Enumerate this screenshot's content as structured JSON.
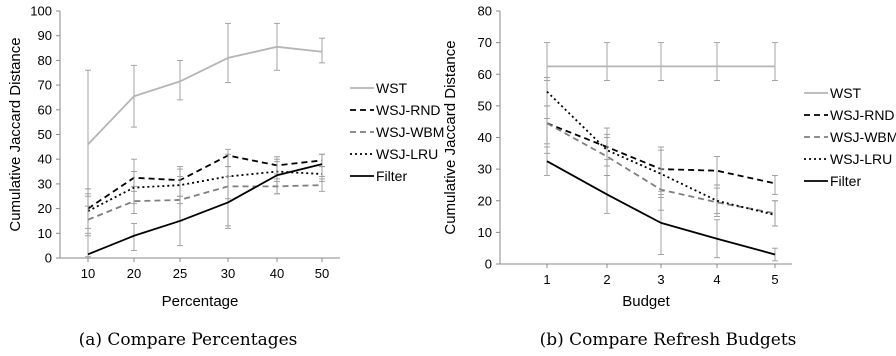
{
  "chart_data": [
    {
      "type": "line",
      "caption": "(a) Compare Percentages",
      "xlabel": "Percentage",
      "ylabel": "Cumulative Jaccard Distance",
      "categories": [
        "10",
        "20",
        "25",
        "30",
        "40",
        "50"
      ],
      "ylim": [
        0,
        100
      ],
      "yticks": [
        "0",
        "10",
        "20",
        "30",
        "40",
        "50",
        "60",
        "70",
        "80",
        "90",
        "100"
      ],
      "grid": false,
      "legend_position": "right",
      "series": [
        {
          "name": "WST",
          "color": "#b5b5b5",
          "dash": "solid",
          "values": [
            46,
            65.5,
            71.5,
            81,
            85.5,
            83.5
          ],
          "err_low": [
            25,
            53,
            64,
            71,
            76,
            79
          ],
          "err_high": [
            76,
            78,
            80,
            95,
            95,
            89
          ]
        },
        {
          "name": "WSJ-RND",
          "color": "#000000",
          "dash": "dashed",
          "values": [
            20,
            32.5,
            31.5,
            41.5,
            37.5,
            39.5
          ],
          "err_low": [
            12,
            27,
            25,
            37,
            34,
            37
          ],
          "err_high": [
            28,
            40,
            37,
            44,
            41,
            42
          ]
        },
        {
          "name": "WSJ-WBM",
          "color": "#7f7f7f",
          "dash": "dashed",
          "values": [
            15.5,
            23,
            23.5,
            29,
            29,
            29.5
          ],
          "err_low": [
            10,
            18,
            15,
            13,
            26,
            27
          ],
          "err_high": [
            21,
            29,
            33,
            37,
            32,
            32
          ]
        },
        {
          "name": "WSJ-LRU",
          "color": "#000000",
          "dash": "dotted",
          "values": [
            19,
            28.5,
            29.5,
            33,
            35,
            34
          ],
          "err_low": [
            9,
            22,
            22,
            24,
            31,
            31
          ],
          "err_high": [
            28,
            35,
            36,
            42,
            39,
            37
          ]
        },
        {
          "name": "Filter",
          "color": "#000000",
          "dash": "solid",
          "values": [
            1.5,
            9,
            15,
            22.5,
            33.5,
            38
          ],
          "err_low": [
            0.5,
            3,
            5,
            12,
            26,
            33
          ],
          "err_high": [
            26,
            14,
            25,
            33,
            40,
            42
          ]
        }
      ]
    },
    {
      "type": "line",
      "caption": "(b) Compare Refresh Budgets",
      "xlabel": "Budget",
      "ylabel": "Cumulative Jaccard Distance",
      "categories": [
        "1",
        "2",
        "3",
        "4",
        "5"
      ],
      "ylim": [
        0,
        80
      ],
      "yticks": [
        "0",
        "10",
        "20",
        "30",
        "40",
        "50",
        "60",
        "70",
        "80"
      ],
      "grid": false,
      "legend_position": "right",
      "series": [
        {
          "name": "WST",
          "color": "#b5b5b5",
          "dash": "solid",
          "values": [
            62.5,
            62.5,
            62.5,
            62.5,
            62.5
          ],
          "err_low": [
            58,
            58,
            58,
            58,
            58
          ],
          "err_high": [
            70,
            70,
            70,
            70,
            70
          ]
        },
        {
          "name": "WSJ-RND",
          "color": "#000000",
          "dash": "dashed",
          "values": [
            44.5,
            37,
            30,
            29.5,
            25.5
          ],
          "err_low": [
            35,
            33,
            23,
            25,
            22
          ],
          "err_high": [
            50,
            43,
            37,
            34,
            28
          ]
        },
        {
          "name": "WSJ-WBM",
          "color": "#7f7f7f",
          "dash": "dashed",
          "values": [
            44.5,
            34,
            23.5,
            19.5,
            16
          ],
          "err_low": [
            38,
            28,
            17,
            15,
            12
          ],
          "err_high": [
            50,
            40,
            30,
            24,
            20
          ]
        },
        {
          "name": "WSJ-LRU",
          "color": "#000000",
          "dash": "dotted",
          "values": [
            54.5,
            36,
            28.5,
            20,
            15.5
          ],
          "err_low": [
            46,
            31,
            21,
            16,
            12
          ],
          "err_high": [
            59,
            41,
            36,
            25,
            20
          ]
        },
        {
          "name": "Filter",
          "color": "#000000",
          "dash": "solid",
          "values": [
            32.5,
            22,
            13,
            8,
            3
          ],
          "err_low": [
            28,
            16,
            3,
            2,
            1
          ],
          "err_high": [
            37,
            28,
            22,
            14,
            5
          ]
        }
      ]
    }
  ]
}
